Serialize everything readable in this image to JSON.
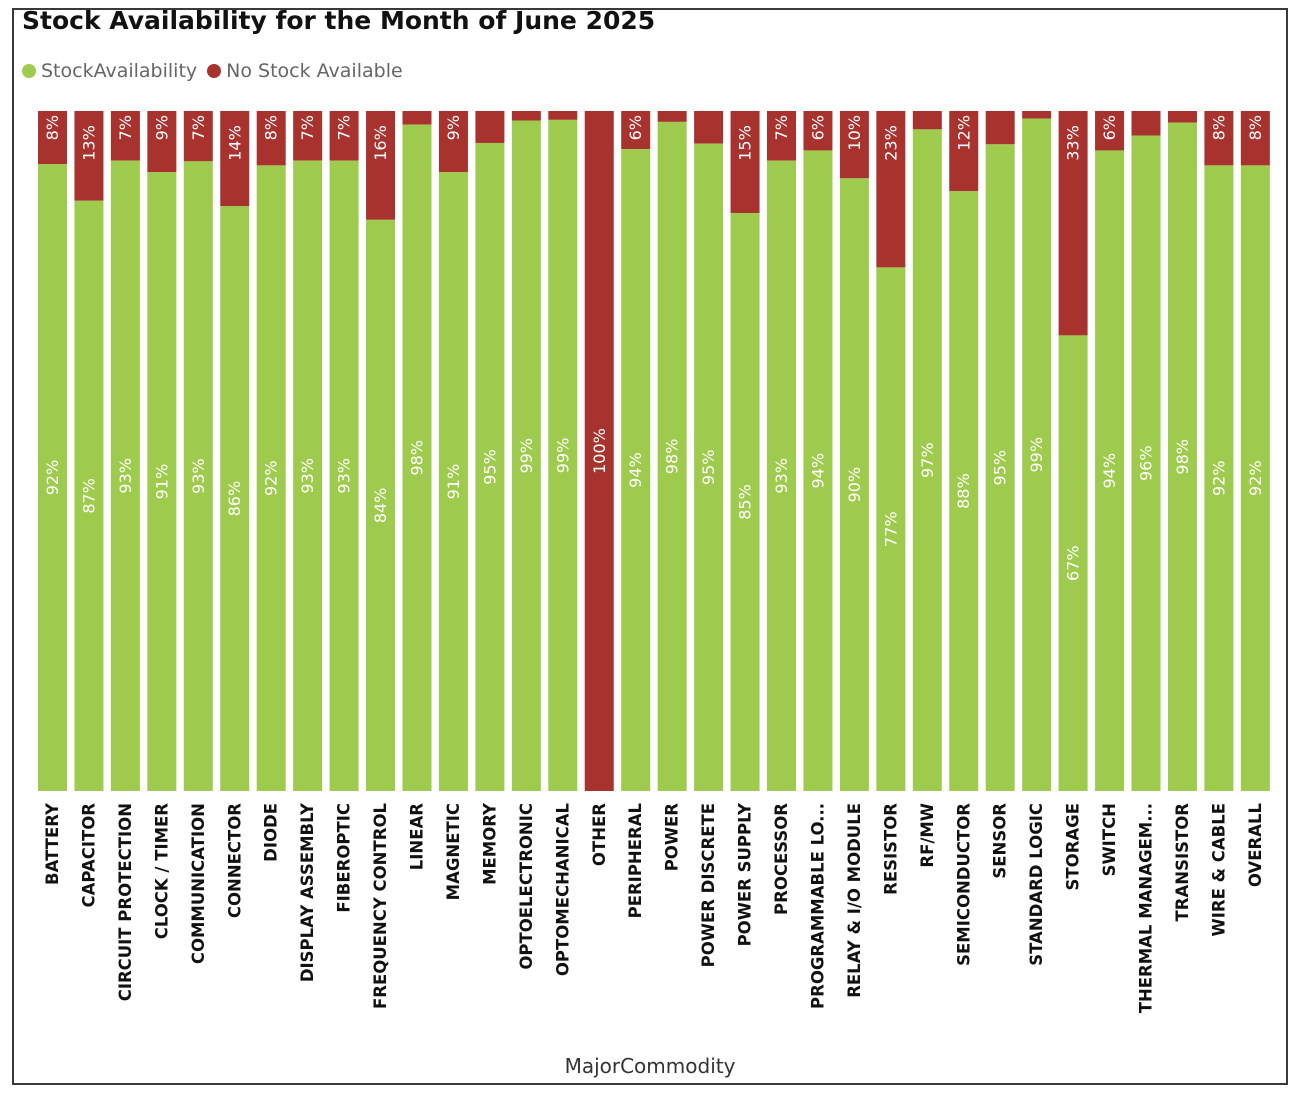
{
  "title": "Stock Availability for the Month of June 2025",
  "legend": {
    "items": [
      {
        "label": "StockAvailability",
        "color": "#9ecb4e"
      },
      {
        "label": "No Stock Available",
        "color": "#a8322e"
      }
    ]
  },
  "chart_data": {
    "type": "bar",
    "stacked": "100%",
    "xlabel": "MajorCommodity",
    "ylabel": "",
    "ylim": [
      0,
      100
    ],
    "grid": false,
    "legend_position": "top-left",
    "categories": [
      "BATTERY",
      "CAPACITOR",
      "CIRCUIT PROTECTION",
      "CLOCK / TIMER",
      "COMMUNICATION",
      "CONNECTOR",
      "DIODE",
      "DISPLAY ASSEMBLY",
      "FIBEROPTIC",
      "FREQUENCY CONTROL",
      "LINEAR",
      "MAGNETIC",
      "MEMORY",
      "OPTOELECTRONIC",
      "OPTOMECHANICAL",
      "OTHER",
      "PERIPHERAL",
      "POWER",
      "POWER DISCRETE",
      "POWER SUPPLY",
      "PROCESSOR",
      "PROGRAMMABLE LO...",
      "RELAY & I/O MODULE",
      "RESISTOR",
      "RF/MW",
      "SEMICONDUCTOR",
      "SENSOR",
      "STANDARD LOGIC",
      "STORAGE",
      "SWITCH",
      "THERMAL MANAGEM...",
      "TRANSISTOR",
      "WIRE & CABLE",
      "OVERALL"
    ],
    "series": [
      {
        "name": "StockAvailability",
        "color": "#9ecb4e",
        "values": [
          92.2,
          86.8,
          92.7,
          91.0,
          92.6,
          86.0,
          92.0,
          92.7,
          92.7,
          84.0,
          98.0,
          91.0,
          95.3,
          98.6,
          98.7,
          0,
          94.4,
          98.4,
          95.2,
          85.0,
          92.7,
          94.2,
          90.1,
          77.0,
          97.3,
          88.2,
          95.1,
          98.9,
          67.0,
          94.2,
          96.4,
          98.3,
          92.0,
          92.0
        ],
        "labels": [
          "92%",
          "87%",
          "93%",
          "91%",
          "93%",
          "86%",
          "92%",
          "93%",
          "93%",
          "84%",
          "98%",
          "91%",
          "95%",
          "99%",
          "99%",
          "",
          "94%",
          "98%",
          "95%",
          "85%",
          "93%",
          "94%",
          "90%",
          "77%",
          "97%",
          "88%",
          "95%",
          "99%",
          "67%",
          "94%",
          "96%",
          "98%",
          "92%",
          "92%"
        ]
      },
      {
        "name": "No Stock Available",
        "color": "#a8322e",
        "values": [
          7.8,
          13.2,
          7.3,
          9.0,
          7.4,
          14.0,
          8.0,
          7.3,
          7.3,
          16.0,
          2.0,
          9.0,
          4.7,
          1.4,
          1.3,
          100,
          5.6,
          1.6,
          4.8,
          15.0,
          7.3,
          5.8,
          9.9,
          23.0,
          2.7,
          11.8,
          4.9,
          1.1,
          33.0,
          5.8,
          3.6,
          1.7,
          8.0,
          8.0
        ],
        "labels": [
          "8%",
          "13%",
          "7%",
          "9%",
          "7%",
          "14%",
          "8%",
          "7%",
          "7%",
          "16%",
          "",
          "9%",
          "",
          "",
          "",
          "100%",
          "6%",
          "",
          "",
          "15%",
          "7%",
          "6%",
          "10%",
          "23%",
          "",
          "12%",
          "",
          "",
          "33%",
          "6%",
          "",
          "",
          "8%",
          "8%"
        ]
      }
    ]
  }
}
